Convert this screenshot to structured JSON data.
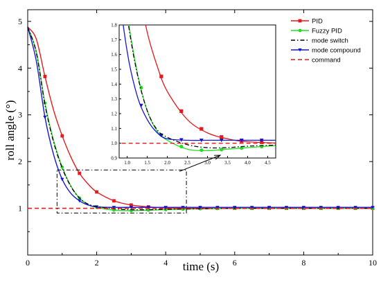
{
  "chart_data": [
    {
      "type": "line",
      "xlabel": "time (s)",
      "ylabel": "roll angle (°)",
      "xlim": [
        0,
        10
      ],
      "ylim": [
        0,
        5.25
      ],
      "xticks": [
        "0",
        "2",
        "4",
        "6",
        "8",
        "10"
      ],
      "yticks": [
        "1",
        "2",
        "3",
        "4",
        "5"
      ],
      "legend": "top-right",
      "grid": false,
      "series": [
        {
          "name": "PID",
          "color": "#e41a1c",
          "marker": "square",
          "line": "solid",
          "x": [
            0,
            0.25,
            0.5,
            0.75,
            1.0,
            1.25,
            1.5,
            1.75,
            2.0,
            2.5,
            3.0,
            3.5,
            4.0,
            5.0,
            6.0,
            7.0,
            8.0,
            9.0,
            10.0
          ],
          "y": [
            4.88,
            4.62,
            3.82,
            3.1,
            2.55,
            2.1,
            1.75,
            1.52,
            1.35,
            1.16,
            1.07,
            1.03,
            1.01,
            1.0,
            1.0,
            1.0,
            1.0,
            1.0,
            1.0
          ]
        },
        {
          "name": "Fuzzy PID",
          "color": "#22dd22",
          "marker": "circle",
          "line": "solid",
          "x": [
            0,
            0.25,
            0.5,
            0.75,
            1.0,
            1.25,
            1.5,
            1.75,
            2.0,
            2.5,
            3.0,
            3.5,
            4.0,
            5.0,
            6.0,
            7.0,
            8.0,
            9.0,
            10.0
          ],
          "y": [
            4.88,
            4.35,
            3.25,
            2.45,
            1.88,
            1.48,
            1.22,
            1.08,
            1.02,
            0.96,
            0.95,
            0.96,
            0.97,
            0.99,
            1.0,
            1.0,
            1.0,
            1.0,
            1.0
          ]
        },
        {
          "name": "mode switch",
          "color": "#000000",
          "marker": "none",
          "line": "dashdot",
          "x": [
            0,
            0.25,
            0.5,
            0.75,
            1.0,
            1.25,
            1.5,
            1.75,
            2.0,
            2.5,
            3.0,
            3.5,
            4.0,
            5.0,
            6.0,
            7.0,
            8.0,
            9.0,
            10.0
          ],
          "y": [
            4.88,
            4.33,
            3.22,
            2.42,
            1.86,
            1.47,
            1.22,
            1.09,
            1.04,
            0.99,
            0.97,
            0.97,
            0.98,
            0.99,
            1.0,
            1.0,
            1.0,
            1.0,
            1.0
          ]
        },
        {
          "name": "mode compound",
          "color": "#1515d8",
          "marker": "triangle-down",
          "line": "solid",
          "x": [
            0,
            0.25,
            0.5,
            0.75,
            1.0,
            1.25,
            1.5,
            1.75,
            2.0,
            2.5,
            3.0,
            3.5,
            4.0,
            5.0,
            6.0,
            7.0,
            8.0,
            9.0,
            10.0
          ],
          "y": [
            4.88,
            4.15,
            2.95,
            2.15,
            1.62,
            1.32,
            1.16,
            1.07,
            1.03,
            1.02,
            1.02,
            1.02,
            1.02,
            1.02,
            1.02,
            1.02,
            1.02,
            1.02,
            1.02
          ]
        },
        {
          "name": "command",
          "color": "#e41a1c",
          "marker": "none",
          "line": "dashed",
          "x": [
            0,
            10
          ],
          "y": [
            1,
            1
          ]
        }
      ]
    },
    {
      "type": "line",
      "xlim": [
        0.8,
        4.7
      ],
      "ylim": [
        0.9,
        1.8
      ],
      "xticks": [
        "1.0",
        "1.5",
        "2.0",
        "2.5",
        "3.0",
        "3.5",
        "4.0",
        "4.5"
      ],
      "yticks": [
        "0.9",
        "1.0",
        "1.1",
        "1.2",
        "1.3",
        "1.4",
        "1.5",
        "1.6",
        "1.7",
        "1.8"
      ],
      "zoom_region": {
        "x": [
          0.85,
          4.6
        ],
        "y": [
          0.9,
          1.82
        ]
      }
    }
  ]
}
